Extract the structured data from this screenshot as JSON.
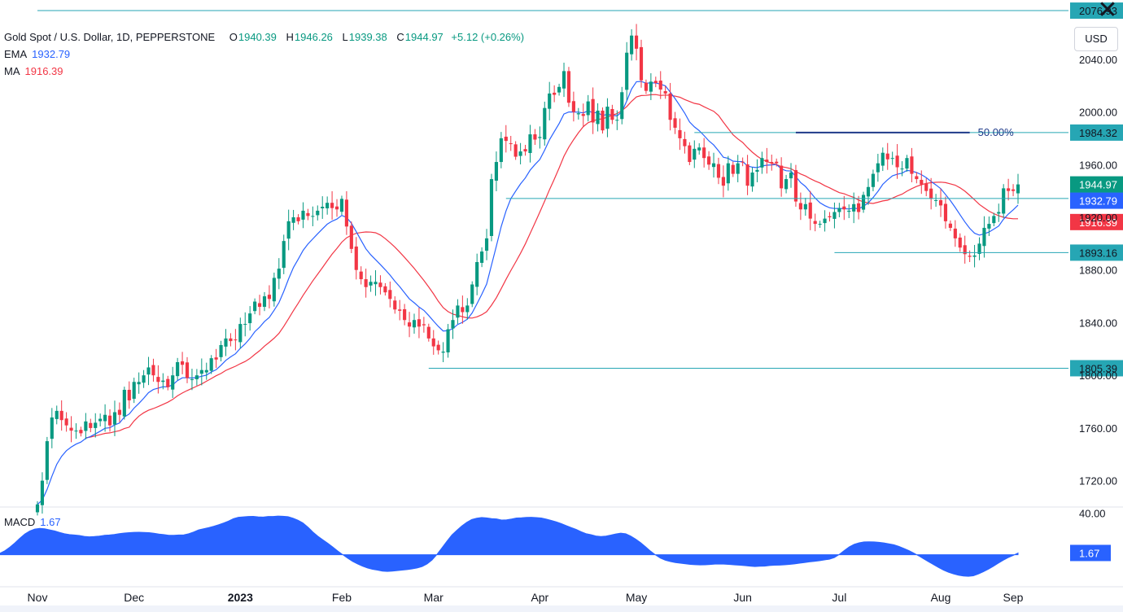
{
  "header": {
    "symbol": "Gold Spot / U.S. Dollar, 1D, PEPPERSTONE",
    "open_k": "O",
    "open": "1940.39",
    "high_k": "H",
    "high": "1946.26",
    "low_k": "L",
    "low": "1939.38",
    "close_k": "C",
    "close": "1944.97",
    "change": "+5.12 (+0.26%)",
    "ema_label": "EMA",
    "ema_value": "1932.79",
    "ma_label": "MA",
    "ma_value": "1916.39",
    "currency_button": "USD",
    "close_button": "✕"
  },
  "colors": {
    "up": "#089981",
    "down": "#f23645",
    "ema": "#2962ff",
    "ma": "#f23645",
    "level": "#26a6b4",
    "fib": "#1e3a8a",
    "macd": "#2962ff",
    "text": "#131722"
  },
  "chart_data": {
    "type": "candlestick",
    "ylim": [
      1700,
      2085
    ],
    "price_ticks": [
      1720,
      1760,
      1800,
      1840,
      1880,
      1920,
      1960,
      2000,
      2040
    ],
    "price_tick_labels": [
      "1720.00",
      "1760.00",
      "1800.00",
      "1840.00",
      "1880.00",
      "1920.00",
      "1960.00",
      "2000.00",
      "2040.00"
    ],
    "months": [
      "Nov",
      "Dec",
      "2023",
      "Feb",
      "Mar",
      "Apr",
      "May",
      "Jun",
      "Jul",
      "Aug",
      "Sep"
    ],
    "month_bar_index": [
      0,
      20,
      42,
      63,
      82,
      104,
      124,
      146,
      166,
      187,
      209
    ],
    "key_levels": [
      {
        "label": "2076.93",
        "value": 2076.93,
        "from_index": 0
      },
      {
        "label": "1984.32",
        "value": 1984.32,
        "from_index": 136
      },
      {
        "label": "1934.30",
        "value": 1934.3,
        "from_index": 97
      },
      {
        "label": "1893.16",
        "value": 1893.16,
        "from_index": 165
      },
      {
        "label": "1805.39",
        "value": 1805.39,
        "from_index": 81
      }
    ],
    "fib": {
      "label": "50.00%",
      "value": 1984.32,
      "from_index": 157,
      "to_index": 193
    },
    "last": {
      "price": "1944.97",
      "ema": "1932.79",
      "ma": "1916.39"
    },
    "candles_close": [
      1702,
      1720,
      1750,
      1768,
      1773,
      1766,
      1762,
      1758,
      1758,
      1756,
      1765,
      1760,
      1764,
      1767,
      1770,
      1762,
      1772,
      1770,
      1789,
      1781,
      1795,
      1795,
      1800,
      1806,
      1800,
      1795,
      1796,
      1791,
      1800,
      1810,
      1808,
      1798,
      1797,
      1800,
      1804,
      1804,
      1813,
      1812,
      1823,
      1828,
      1826,
      1827,
      1839,
      1839,
      1847,
      1856,
      1852,
      1860,
      1858,
      1874,
      1881,
      1902,
      1917,
      1920,
      1917,
      1925,
      1921,
      1921,
      1925,
      1928,
      1931,
      1927,
      1926,
      1934,
      1913,
      1896,
      1880,
      1873,
      1867,
      1871,
      1871,
      1867,
      1863,
      1858,
      1850,
      1849,
      1842,
      1837,
      1842,
      1837,
      1838,
      1828,
      1822,
      1819,
      1818,
      1835,
      1842,
      1853,
      1848,
      1853,
      1869,
      1886,
      1894,
      1904,
      1949,
      1962,
      1980,
      1978,
      1976,
      1966,
      1970,
      1970,
      1983,
      1979,
      1981,
      2003,
      2014,
      2013,
      2019,
      2031,
      2007,
      2000,
      1999,
      1997,
      2008,
      1992,
      2001,
      1986,
      2004,
      1994,
      1994,
      2015,
      2045,
      2058,
      2048,
      2024,
      2016,
      2023,
      2022,
      2017,
      2014,
      1994,
      1988,
      1980,
      1974,
      1962,
      1972,
      1973,
      1965,
      1960,
      1961,
      1950,
      1944,
      1961,
      1953,
      1961,
      1962,
      1944,
      1954,
      1956,
      1965,
      1962,
      1961,
      1961,
      1942,
      1949,
      1954,
      1932,
      1926,
      1930,
      1919,
      1915,
      1915,
      1919,
      1920,
      1924,
      1927,
      1926,
      1925,
      1930,
      1924,
      1937,
      1943,
      1953,
      1961,
      1969,
      1964,
      1965,
      1958,
      1957,
      1965,
      1953,
      1949,
      1945,
      1940,
      1934,
      1933,
      1929,
      1917,
      1912,
      1904,
      1897,
      1892,
      1890,
      1891,
      1900,
      1912,
      1915,
      1921,
      1924,
      1942,
      1940,
      1940,
      1944.97
    ],
    "ema_last": 1932.79,
    "ma_last": 1916.39,
    "macd": {
      "label": "MACD",
      "value": "1.67",
      "tick_label": "40.00",
      "tick": 40,
      "ylim": [
        -30,
        45
      ],
      "values": [
        1.4,
        3.8,
        7.3,
        11.3,
        15.8,
        19.9,
        22.7,
        24.6,
        25.3,
        24.9,
        23.8,
        22.8,
        21.4,
        20.1,
        19.3,
        18.9,
        18.4,
        17.6,
        17.2,
        17.4,
        17.8,
        18.6,
        18.9,
        19.4,
        20.2,
        20.8,
        21.2,
        21.5,
        21.6,
        21.4,
        21.2,
        20.6,
        19.8,
        19.3,
        18.6,
        18.7,
        18.9,
        19.1,
        20.1,
        21.8,
        23.8,
        24.9,
        26.0,
        27.3,
        28.7,
        30.4,
        32.3,
        34.5,
        35.9,
        36.3,
        36.7,
        36.8,
        36.3,
        36.1,
        36.7,
        36.7,
        37.1,
        36.9,
        36.5,
        35.1,
        33.1,
        30.5,
        26.5,
        21.8,
        17.7,
        14.3,
        11.0,
        7.4,
        3.6,
        0.1,
        -3.3,
        -6.4,
        -8.8,
        -10.9,
        -12.7,
        -14.0,
        -14.8,
        -15.8,
        -16.0,
        -15.7,
        -15.2,
        -14.8,
        -14.3,
        -13.6,
        -12.7,
        -11.3,
        -8.9,
        -5.1,
        0.3,
        6.6,
        13.0,
        18.9,
        23.4,
        27.6,
        31.1,
        33.8,
        35.0,
        35.7,
        35.3,
        34.7,
        34.4,
        33.3,
        33.5,
        34.2,
        35.2,
        35.4,
        35.8,
        35.9,
        35.6,
        35.2,
        34.2,
        32.9,
        31.6,
        29.9,
        28.0,
        26.1,
        24.4,
        22.1,
        20.2,
        19.2,
        18.0,
        17.5,
        17.9,
        18.8,
        19.9,
        20.7,
        20.1,
        17.9,
        15.0,
        11.6,
        7.6,
        3.4,
        -0.2,
        -3.3,
        -5.3,
        -6.6,
        -7.6,
        -8.1,
        -8.7,
        -9.3,
        -9.6,
        -9.8,
        -9.7,
        -9.4,
        -9.0,
        -8.9,
        -9.1,
        -9.4,
        -9.8,
        -10.1,
        -10.5,
        -10.9,
        -11.3,
        -11.1,
        -10.9,
        -10.4,
        -10.1,
        -10.0,
        -9.7,
        -9.3,
        -8.8,
        -8.1,
        -7.5,
        -6.9,
        -6.3,
        -5.8,
        -5.0,
        -4.3,
        -2.8,
        0.2,
        4.0,
        7.4,
        9.9,
        11.4,
        12.3,
        12.4,
        12.3,
        11.9,
        11.3,
        10.4,
        9.5,
        8.0,
        6.1,
        4.0,
        1.6,
        -1.1,
        -4.0,
        -6.8,
        -9.5,
        -12.3,
        -14.8,
        -16.9,
        -18.4,
        -19.6,
        -20.5,
        -20.7,
        -20.2,
        -18.5,
        -16.4,
        -13.9,
        -11.2,
        -8.2,
        -5.3,
        -2.8,
        -0.7,
        1.67
      ]
    }
  }
}
